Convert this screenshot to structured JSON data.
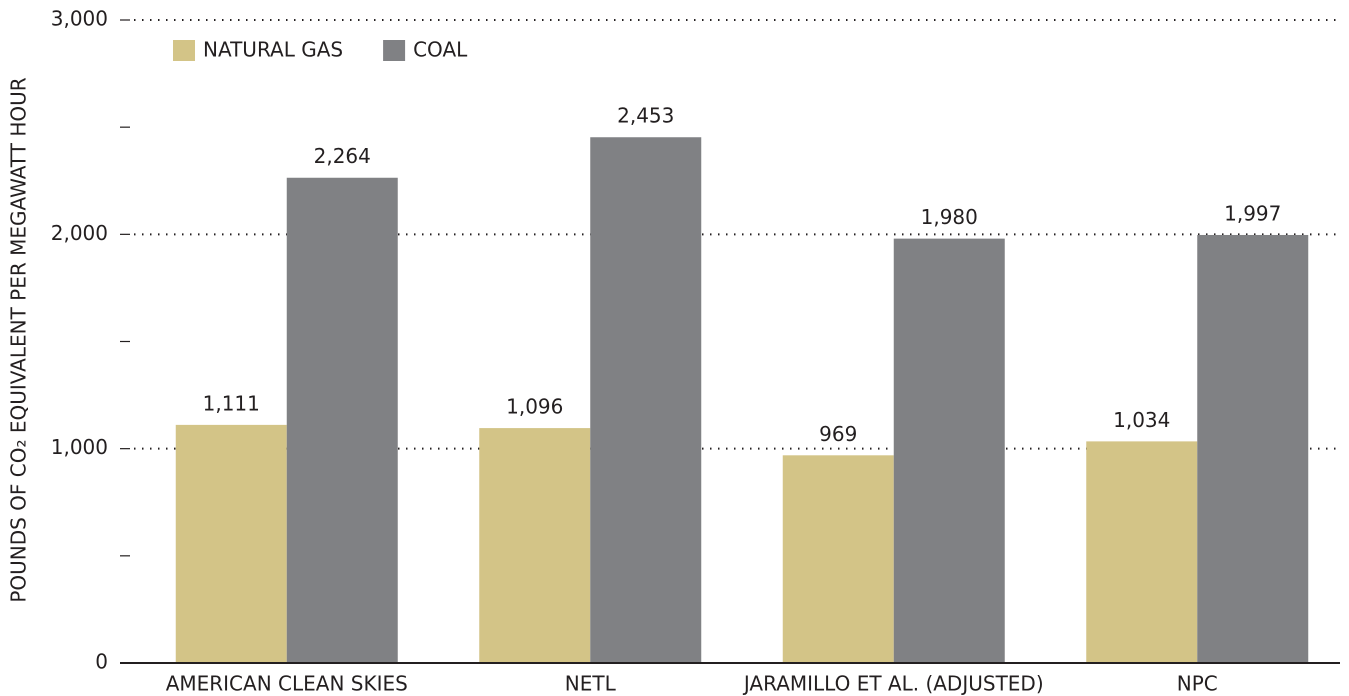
{
  "chart_data": {
    "type": "bar",
    "ylabel": "POUNDS OF CO₂ EQUIVALENT PER MEGAWATT HOUR",
    "categories": [
      "AMERICAN CLEAN SKIES",
      "NETL",
      "JARAMILLO ET AL. (ADJUSTED)",
      "NPC"
    ],
    "series": [
      {
        "name": "NATURAL GAS",
        "color": "#d3c487",
        "values": [
          1111,
          1096,
          969,
          1034
        ],
        "value_labels": [
          "1,111",
          "1,096",
          "969",
          "1,034"
        ]
      },
      {
        "name": "COAL",
        "color": "#808184",
        "values": [
          2264,
          2453,
          1980,
          1997
        ],
        "value_labels": [
          "2,264",
          "2,453",
          "1,980",
          "1,997"
        ]
      }
    ],
    "ylim": [
      0,
      3000
    ],
    "yticks": [
      0,
      {
        "value": 1000,
        "label": "1,000"
      },
      {
        "value": 2000,
        "label": "2,000"
      },
      {
        "value": 3000,
        "label": "3,000"
      }
    ],
    "minor_yticks": [
      500,
      1500,
      2500
    ],
    "grid": true,
    "legend": "top-left"
  }
}
